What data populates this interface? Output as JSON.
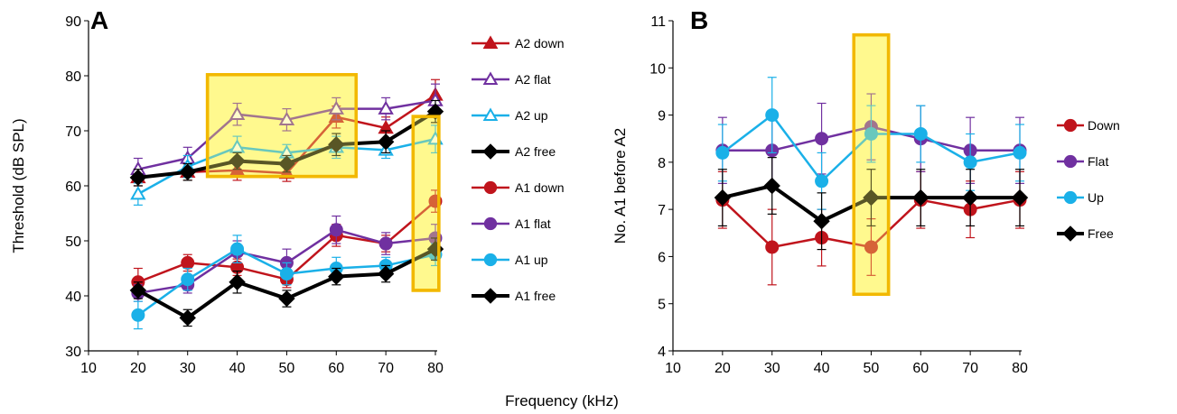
{
  "shared_xlabel": "Frequency (kHz)",
  "chart_data": [
    {
      "type": "line",
      "panel": "A",
      "xlabel": "",
      "ylabel": "Threshold (dB SPL)",
      "xlim": [
        10,
        80
      ],
      "ylim": [
        30,
        90
      ],
      "xticks": [
        10,
        20,
        30,
        40,
        50,
        60,
        70,
        80
      ],
      "yticks": [
        30,
        40,
        50,
        60,
        70,
        80,
        90
      ],
      "grid": false,
      "legend": "right",
      "x": [
        20,
        30,
        40,
        50,
        60,
        70,
        80
      ],
      "series": [
        {
          "name": "A2 down",
          "color": "#c0141c",
          "marker": "triangle",
          "filled": true,
          "values": [
            61.5,
            62.5,
            62.8,
            62.3,
            72.5,
            70.5,
            76.5
          ],
          "err": [
            1.5,
            1.5,
            1.8,
            1.5,
            2.0,
            2.0,
            2.8
          ]
        },
        {
          "name": "A2 flat",
          "color": "#7030a0",
          "marker": "triangle",
          "filled": false,
          "values": [
            63,
            65,
            73,
            72,
            74,
            74,
            75.5
          ],
          "err": [
            2,
            2,
            2,
            2,
            2,
            2,
            3
          ]
        },
        {
          "name": "A2 up",
          "color": "#1ab0e8",
          "marker": "triangle",
          "filled": false,
          "values": [
            58.5,
            63.5,
            67,
            66,
            67,
            66.5,
            68.5
          ],
          "err": [
            2,
            2,
            2,
            1.5,
            2,
            1.5,
            2.5
          ]
        },
        {
          "name": "A2 free",
          "color": "#000000",
          "marker": "diamond",
          "filled": true,
          "values": [
            61.5,
            62.5,
            64.5,
            64.0,
            67.5,
            68.0,
            73.5
          ],
          "err": [
            1.5,
            1.5,
            1.5,
            1.5,
            2.0,
            2.0,
            2.0
          ]
        },
        {
          "name": "A1 down",
          "color": "#c0141c",
          "marker": "circle",
          "filled": true,
          "values": [
            42.5,
            46,
            45.2,
            43,
            51,
            49.5,
            57.2
          ],
          "err": [
            2.5,
            1.5,
            1.5,
            1.5,
            2.0,
            1.5,
            2.0
          ]
        },
        {
          "name": "A1 flat",
          "color": "#7030a0",
          "marker": "circle",
          "filled": true,
          "values": [
            40.5,
            42.0,
            48,
            46,
            52,
            49.5,
            50.5
          ],
          "err": [
            1.5,
            1.5,
            2,
            2.5,
            2.5,
            2,
            2.5
          ]
        },
        {
          "name": "A1 up",
          "color": "#1ab0e8",
          "marker": "circle",
          "filled": true,
          "values": [
            36.5,
            43,
            48.5,
            44,
            45,
            45.5,
            47.5
          ],
          "err": [
            2.5,
            2,
            2.5,
            2,
            2,
            1.5,
            2
          ]
        },
        {
          "name": "A1 free",
          "color": "#000000",
          "marker": "diamond",
          "filled": true,
          "values": [
            41,
            36,
            42.5,
            39.5,
            43.5,
            44,
            48.5
          ],
          "err": [
            1.5,
            1.5,
            2.0,
            1.5,
            1.5,
            1.5,
            2.0
          ]
        }
      ]
    },
    {
      "type": "line",
      "panel": "B",
      "xlabel": "",
      "ylabel": "No. A1 before A2",
      "xlim": [
        10,
        80
      ],
      "ylim": [
        4,
        11
      ],
      "xticks": [
        10,
        20,
        30,
        40,
        50,
        60,
        70,
        80
      ],
      "yticks": [
        4,
        5,
        6,
        7,
        8,
        9,
        10,
        11
      ],
      "grid": false,
      "legend": "right",
      "x": [
        20,
        30,
        40,
        50,
        60,
        70,
        80
      ],
      "series": [
        {
          "name": "Down",
          "color": "#c0141c",
          "marker": "circle",
          "filled": true,
          "values": [
            7.2,
            6.2,
            6.4,
            6.2,
            7.2,
            7.0,
            7.2
          ],
          "err": [
            0.6,
            0.8,
            0.6,
            0.6,
            0.6,
            0.6,
            0.6
          ]
        },
        {
          "name": "Flat",
          "color": "#7030a0",
          "marker": "circle",
          "filled": true,
          "values": [
            8.25,
            8.25,
            8.5,
            8.75,
            8.5,
            8.25,
            8.25
          ],
          "err": [
            0.7,
            0.7,
            0.75,
            0.7,
            0.7,
            0.7,
            0.7
          ]
        },
        {
          "name": "Up",
          "color": "#1ab0e8",
          "marker": "circle",
          "filled": true,
          "values": [
            8.2,
            9.0,
            7.6,
            8.6,
            8.6,
            8.0,
            8.2
          ],
          "err": [
            0.6,
            0.8,
            0.6,
            0.6,
            0.6,
            0.6,
            0.6
          ]
        },
        {
          "name": "Free",
          "color": "#000000",
          "marker": "diamond",
          "filled": true,
          "values": [
            7.25,
            7.5,
            6.75,
            7.25,
            7.25,
            7.25,
            7.25
          ],
          "err": [
            0.6,
            0.6,
            0.6,
            0.6,
            0.6,
            0.6,
            0.6
          ]
        }
      ]
    }
  ]
}
